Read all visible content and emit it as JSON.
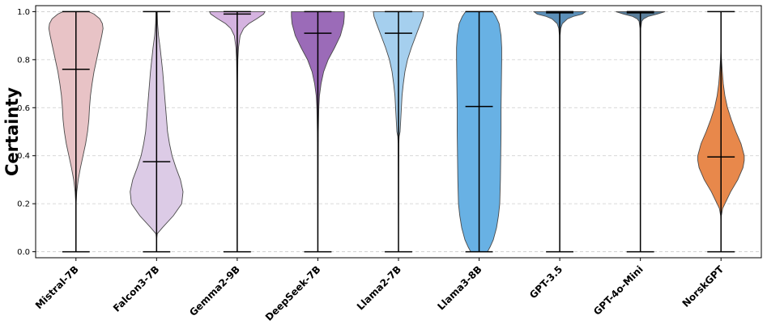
{
  "chart_data": {
    "type": "violin",
    "title": "",
    "xlabel": "",
    "ylabel": "Certainty",
    "ylim": [
      0,
      1
    ],
    "yticks": [
      "0.0",
      "0.2",
      "0.4",
      "0.6",
      "0.8",
      "1.0"
    ],
    "grid": "horizontal-dashed",
    "categories": [
      "Mistral-7B",
      "Falcon3-7B",
      "Gemma2-9B",
      "DeepSeek-7B",
      "Llama2-7B",
      "Llama3-8B",
      "GPT-3.5",
      "GPT-4o-Mini",
      "NorskGPT"
    ],
    "colors": [
      "#e8c3c6",
      "#dccbe6",
      "#d5b3e0",
      "#9b6bb8",
      "#a5cfee",
      "#68b1e4",
      "#5b8fb8",
      "#5a7f9c",
      "#e8884b"
    ],
    "series": [
      {
        "min": 0.0,
        "max": 1.0,
        "median": 0.76,
        "density": [
          [
            0.0,
            0.0
          ],
          [
            0.05,
            0.0
          ],
          [
            0.1,
            0.0
          ],
          [
            0.15,
            0.0
          ],
          [
            0.2,
            0.005
          ],
          [
            0.25,
            0.025
          ],
          [
            0.3,
            0.07
          ],
          [
            0.35,
            0.14
          ],
          [
            0.4,
            0.22
          ],
          [
            0.45,
            0.3
          ],
          [
            0.5,
            0.36
          ],
          [
            0.55,
            0.4
          ],
          [
            0.6,
            0.42
          ],
          [
            0.65,
            0.45
          ],
          [
            0.7,
            0.5
          ],
          [
            0.75,
            0.56
          ],
          [
            0.8,
            0.64
          ],
          [
            0.85,
            0.72
          ],
          [
            0.9,
            0.8
          ],
          [
            0.93,
            0.84
          ],
          [
            0.95,
            0.82
          ],
          [
            0.97,
            0.74
          ],
          [
            0.99,
            0.56
          ],
          [
            1.0,
            0.4
          ]
        ]
      },
      {
        "min": 0.0,
        "max": 1.0,
        "median": 0.375,
        "density": [
          [
            0.0,
            0.0
          ],
          [
            0.05,
            0.0
          ],
          [
            0.075,
            0.02
          ],
          [
            0.1,
            0.18
          ],
          [
            0.15,
            0.52
          ],
          [
            0.2,
            0.78
          ],
          [
            0.25,
            0.82
          ],
          [
            0.3,
            0.74
          ],
          [
            0.35,
            0.6
          ],
          [
            0.4,
            0.48
          ],
          [
            0.45,
            0.4
          ],
          [
            0.5,
            0.34
          ],
          [
            0.55,
            0.31
          ],
          [
            0.6,
            0.28
          ],
          [
            0.65,
            0.25
          ],
          [
            0.7,
            0.22
          ],
          [
            0.75,
            0.19
          ],
          [
            0.8,
            0.15
          ],
          [
            0.85,
            0.11
          ],
          [
            0.9,
            0.06
          ],
          [
            0.95,
            0.03
          ],
          [
            1.0,
            0.02
          ]
        ]
      },
      {
        "min": 0.0,
        "max": 1.0,
        "median": 0.99,
        "density": [
          [
            0.0,
            0.0
          ],
          [
            0.5,
            0.005
          ],
          [
            0.7,
            0.01
          ],
          [
            0.8,
            0.02
          ],
          [
            0.85,
            0.04
          ],
          [
            0.9,
            0.09
          ],
          [
            0.93,
            0.2
          ],
          [
            0.95,
            0.36
          ],
          [
            0.97,
            0.6
          ],
          [
            0.99,
            0.82
          ],
          [
            1.0,
            0.86
          ]
        ]
      },
      {
        "min": 0.0,
        "max": 1.0,
        "median": 0.91,
        "density": [
          [
            0.0,
            0.0
          ],
          [
            0.2,
            0.005
          ],
          [
            0.4,
            0.01
          ],
          [
            0.5,
            0.015
          ],
          [
            0.6,
            0.03
          ],
          [
            0.65,
            0.05
          ],
          [
            0.7,
            0.1
          ],
          [
            0.75,
            0.18
          ],
          [
            0.8,
            0.32
          ],
          [
            0.85,
            0.52
          ],
          [
            0.9,
            0.7
          ],
          [
            0.95,
            0.8
          ],
          [
            0.98,
            0.82
          ],
          [
            1.0,
            0.82
          ]
        ]
      },
      {
        "min": 0.0,
        "max": 1.0,
        "median": 0.91,
        "density": [
          [
            0.0,
            0.0
          ],
          [
            0.3,
            0.005
          ],
          [
            0.45,
            0.01
          ],
          [
            0.48,
            0.02
          ],
          [
            0.5,
            0.05
          ],
          [
            0.55,
            0.07
          ],
          [
            0.6,
            0.09
          ],
          [
            0.65,
            0.11
          ],
          [
            0.7,
            0.15
          ],
          [
            0.75,
            0.2
          ],
          [
            0.8,
            0.28
          ],
          [
            0.85,
            0.4
          ],
          [
            0.9,
            0.54
          ],
          [
            0.95,
            0.68
          ],
          [
            0.98,
            0.76
          ],
          [
            1.0,
            0.78
          ]
        ]
      },
      {
        "min": 0.0,
        "max": 1.0,
        "median": 0.605,
        "density": [
          [
            0.0,
            0.26
          ],
          [
            0.02,
            0.34
          ],
          [
            0.05,
            0.44
          ],
          [
            0.1,
            0.54
          ],
          [
            0.15,
            0.6
          ],
          [
            0.2,
            0.64
          ],
          [
            0.3,
            0.66
          ],
          [
            0.4,
            0.67
          ],
          [
            0.5,
            0.68
          ],
          [
            0.6,
            0.68
          ],
          [
            0.7,
            0.69
          ],
          [
            0.8,
            0.7
          ],
          [
            0.85,
            0.7
          ],
          [
            0.9,
            0.68
          ],
          [
            0.95,
            0.62
          ],
          [
            0.98,
            0.52
          ],
          [
            1.0,
            0.42
          ]
        ]
      },
      {
        "min": 0.0,
        "max": 1.0,
        "median": 0.995,
        "density": [
          [
            0.0,
            0.0
          ],
          [
            0.8,
            0.005
          ],
          [
            0.9,
            0.01
          ],
          [
            0.93,
            0.03
          ],
          [
            0.95,
            0.08
          ],
          [
            0.97,
            0.24
          ],
          [
            0.98,
            0.42
          ],
          [
            0.99,
            0.7
          ],
          [
            1.0,
            0.8
          ]
        ]
      },
      {
        "min": 0.0,
        "max": 1.0,
        "median": 0.995,
        "density": [
          [
            0.0,
            0.0
          ],
          [
            0.85,
            0.005
          ],
          [
            0.93,
            0.01
          ],
          [
            0.96,
            0.04
          ],
          [
            0.97,
            0.1
          ],
          [
            0.98,
            0.24
          ],
          [
            0.99,
            0.52
          ],
          [
            1.0,
            0.76
          ]
        ]
      },
      {
        "min": 0.0,
        "max": 1.0,
        "median": 0.395,
        "density": [
          [
            0.0,
            0.0
          ],
          [
            0.1,
            0.0
          ],
          [
            0.15,
            0.01
          ],
          [
            0.18,
            0.05
          ],
          [
            0.2,
            0.12
          ],
          [
            0.25,
            0.3
          ],
          [
            0.3,
            0.52
          ],
          [
            0.35,
            0.68
          ],
          [
            0.38,
            0.72
          ],
          [
            0.4,
            0.72
          ],
          [
            0.45,
            0.62
          ],
          [
            0.5,
            0.46
          ],
          [
            0.55,
            0.32
          ],
          [
            0.6,
            0.2
          ],
          [
            0.65,
            0.12
          ],
          [
            0.7,
            0.07
          ],
          [
            0.75,
            0.04
          ],
          [
            0.8,
            0.015
          ],
          [
            0.85,
            0.003
          ],
          [
            0.9,
            0.0
          ],
          [
            1.0,
            0.0
          ]
        ]
      }
    ]
  }
}
